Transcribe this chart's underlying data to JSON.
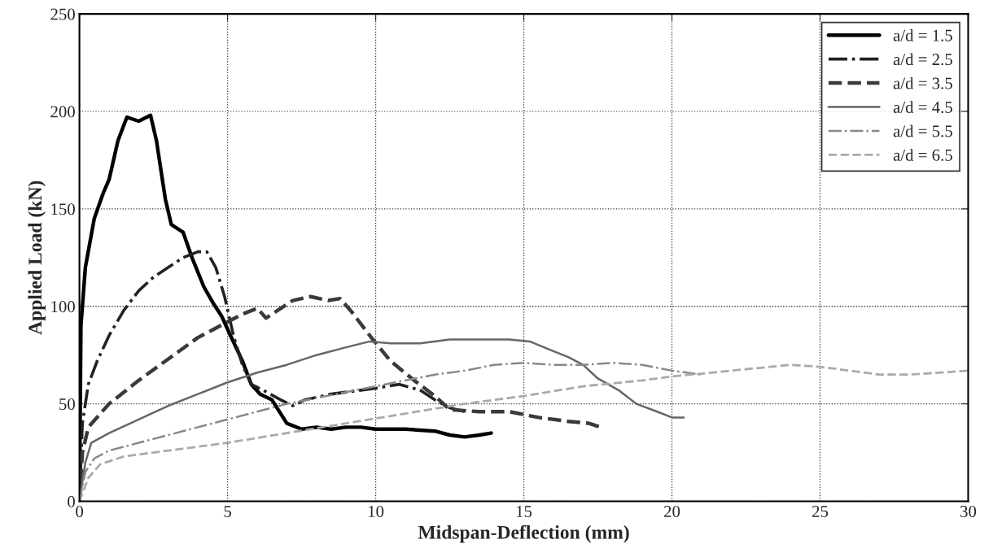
{
  "chart_data": {
    "type": "line",
    "xlabel": "Midspan-Deflection (mm)",
    "ylabel": "Applied Load (kN)",
    "xlim": [
      0,
      30
    ],
    "ylim": [
      0,
      250
    ],
    "xticks": [
      0,
      5,
      10,
      15,
      20,
      25,
      30
    ],
    "yticks": [
      0,
      50,
      100,
      150,
      200,
      250
    ],
    "grid": true,
    "legend": "top right",
    "marker": "none",
    "series": [
      {
        "name": "a/d = 1.5",
        "color": "#000000",
        "line_style": "solid",
        "x": [
          0,
          0.05,
          0.2,
          0.5,
          0.8,
          1.0,
          1.3,
          1.6,
          2.0,
          2.4,
          2.6,
          2.9,
          3.1,
          3.5,
          3.8,
          4.2,
          4.5,
          4.8,
          5.1,
          5.5,
          5.8,
          6.1,
          6.5,
          7.0,
          7.5,
          8.0,
          8.5,
          9.0,
          9.5,
          10,
          11,
          12,
          12.5,
          13,
          13.5,
          13.9
        ],
        "values": [
          0,
          90,
          120,
          145,
          158,
          165,
          185,
          197,
          195,
          198,
          185,
          155,
          142,
          138,
          125,
          110,
          102,
          95,
          85,
          72,
          60,
          55,
          52,
          40,
          37,
          38,
          37,
          38,
          38,
          37,
          37,
          36,
          34,
          33,
          34,
          35
        ]
      },
      {
        "name": "a/d = 2.5",
        "color": "#222222",
        "line_style": "dashdot",
        "x": [
          0,
          0.1,
          0.3,
          0.6,
          1,
          1.5,
          2,
          2.5,
          3,
          3.5,
          4,
          4.3,
          4.6,
          4.9,
          5.2,
          5.5,
          5.8,
          6.2,
          6.8,
          7.2,
          7.6,
          8.5,
          9.5,
          10,
          10.8,
          11.5,
          12,
          12.5,
          13
        ],
        "values": [
          0,
          40,
          60,
          72,
          85,
          98,
          108,
          115,
          120,
          125,
          128,
          128,
          120,
          105,
          85,
          70,
          60,
          57,
          52,
          49,
          52,
          55,
          57,
          58,
          60,
          57,
          52,
          48,
          46
        ]
      },
      {
        "name": "a/d = 3.5",
        "color": "#3a3a3a",
        "line_style": "dashed",
        "x": [
          0,
          0.1,
          0.3,
          1,
          2,
          3,
          4,
          5,
          5.5,
          6,
          6.3,
          6.6,
          7.2,
          7.8,
          8.4,
          8.8,
          9.2,
          9.8,
          10.5,
          11.3,
          12,
          12.5,
          13.5,
          14.5,
          15.5,
          16.5,
          17.2,
          17.6
        ],
        "values": [
          0,
          25,
          38,
          50,
          62,
          73,
          84,
          92,
          96,
          99,
          94,
          97,
          103,
          105,
          103,
          104,
          97,
          85,
          72,
          62,
          54,
          47,
          46,
          46,
          43,
          41,
          40,
          38
        ]
      },
      {
        "name": "a/d = 4.5",
        "color": "#666666",
        "line_style": "solid",
        "x": [
          0,
          0.2,
          0.4,
          1,
          2,
          3,
          4,
          5,
          6,
          7,
          8,
          9,
          9.8,
          10.5,
          11.5,
          12.5,
          13.5,
          14.5,
          15.2,
          16,
          16.5,
          17,
          17.5,
          18.2,
          18.8,
          19.5,
          20,
          20.4
        ],
        "values": [
          0,
          20,
          30,
          35,
          42,
          49,
          55,
          61,
          66,
          70,
          75,
          79,
          82,
          81,
          81,
          83,
          83,
          83,
          82,
          77,
          74,
          70,
          63,
          57,
          50,
          46,
          43,
          43
        ]
      },
      {
        "name": "a/d = 5.5",
        "color": "#888888",
        "line_style": "dashdot",
        "x": [
          0,
          0.2,
          0.5,
          1,
          2,
          3,
          4,
          5,
          6,
          7,
          8,
          9,
          10,
          11,
          12,
          13,
          14,
          15,
          16,
          17,
          18,
          19,
          20,
          21
        ],
        "values": [
          0,
          15,
          22,
          26,
          30,
          34,
          38,
          42,
          46,
          50,
          53,
          56,
          59,
          62,
          65,
          67,
          70,
          71,
          70,
          70,
          71,
          70,
          67,
          65
        ]
      },
      {
        "name": "a/d = 6.5",
        "color": "#aaaaaa",
        "line_style": "dashed",
        "x": [
          0,
          0.3,
          0.7,
          1.5,
          3,
          5,
          7,
          9,
          11,
          13,
          15,
          17,
          19,
          20,
          22,
          24,
          25,
          26,
          27,
          28,
          29,
          30
        ],
        "values": [
          0,
          12,
          19,
          23,
          26,
          30,
          35,
          40,
          45,
          50,
          54,
          59,
          62,
          64,
          67,
          70,
          69,
          67,
          65,
          65,
          66,
          67
        ]
      }
    ]
  }
}
